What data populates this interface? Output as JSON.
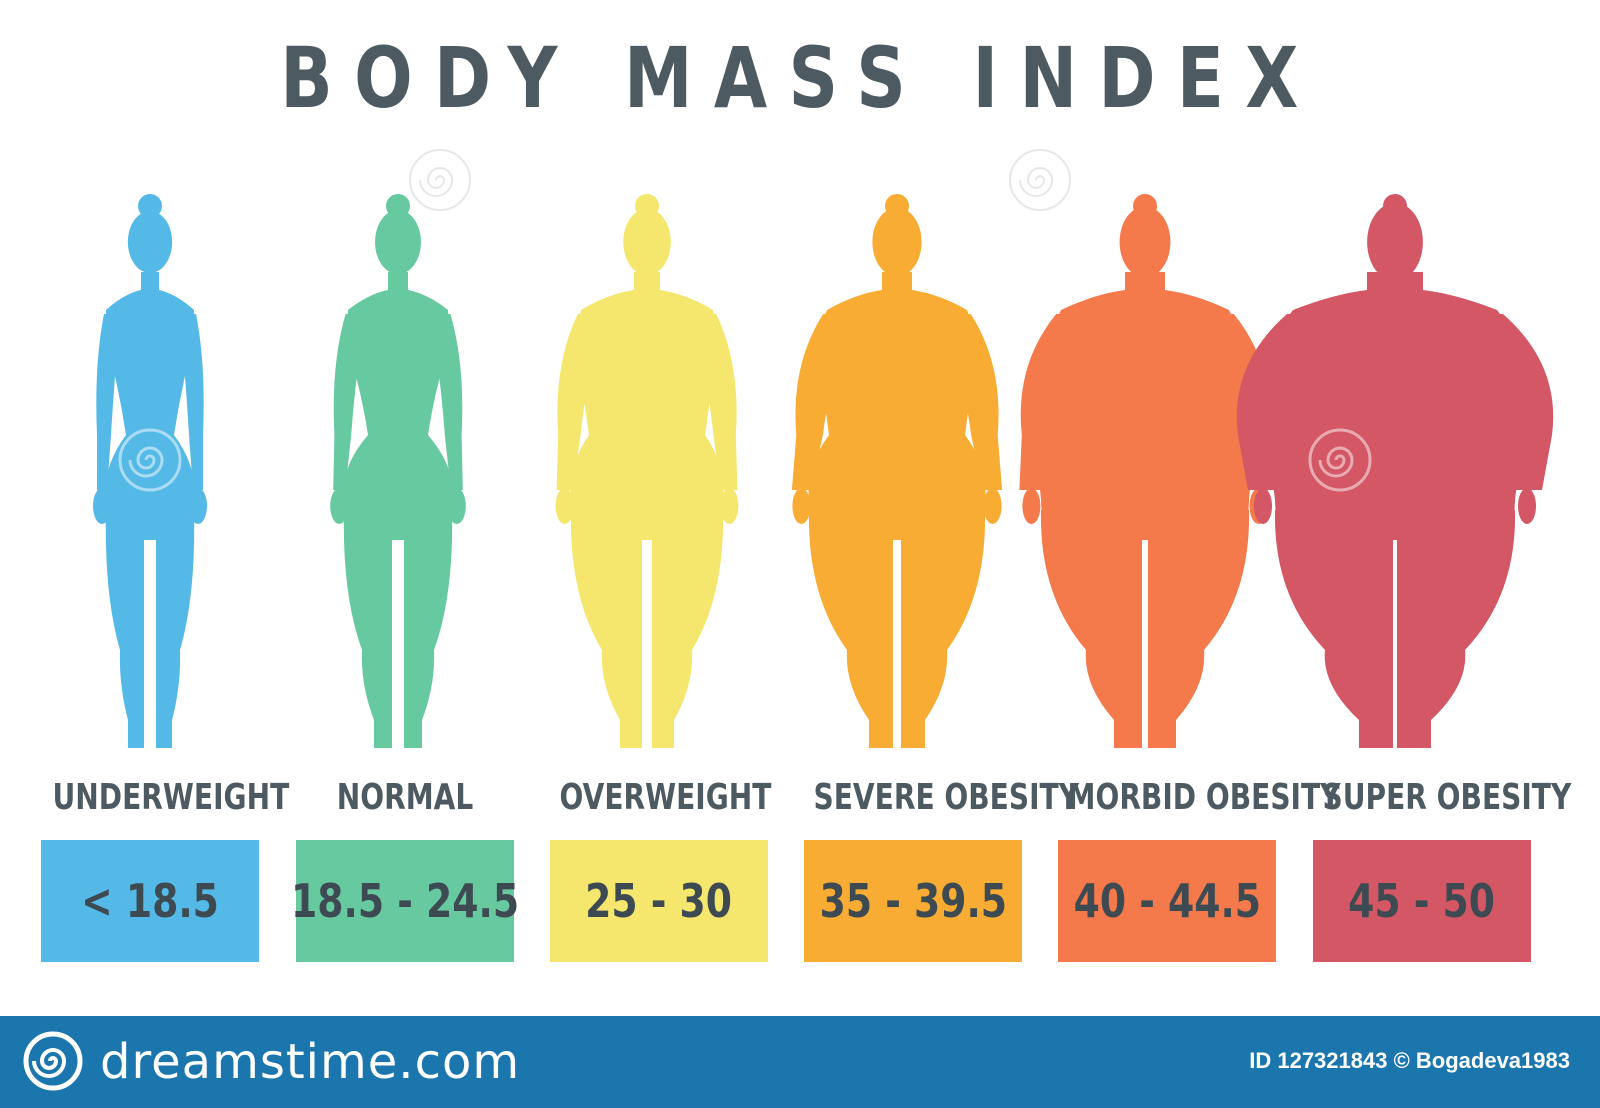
{
  "title": "BODY MASS INDEX",
  "categories": [
    {
      "label": "UNDERWEIGHT",
      "range": "< 18.5",
      "color": "#55b9e8"
    },
    {
      "label": "NORMAL",
      "range": "18.5 - 24.5",
      "color": "#67c9a0"
    },
    {
      "label": "OVERWEIGHT",
      "range": "25 - 30",
      "color": "#f5e66d"
    },
    {
      "label": "SEVERE OBESITY",
      "range": "35 - 39.5",
      "color": "#f9ac33"
    },
    {
      "label": "MORBID OBESITY",
      "range": "40 - 44.5",
      "color": "#f4794b"
    },
    {
      "label": "SUPER OBESITY",
      "range": "45 - 50",
      "color": "#d35764"
    }
  ],
  "text_color": "#4d5a61",
  "footer": {
    "brand": "dreamstime.com",
    "credit": "ID 127321843 © Bogadeva1983",
    "background": "#1a76ad",
    "icon": "spiral-logo-icon"
  }
}
